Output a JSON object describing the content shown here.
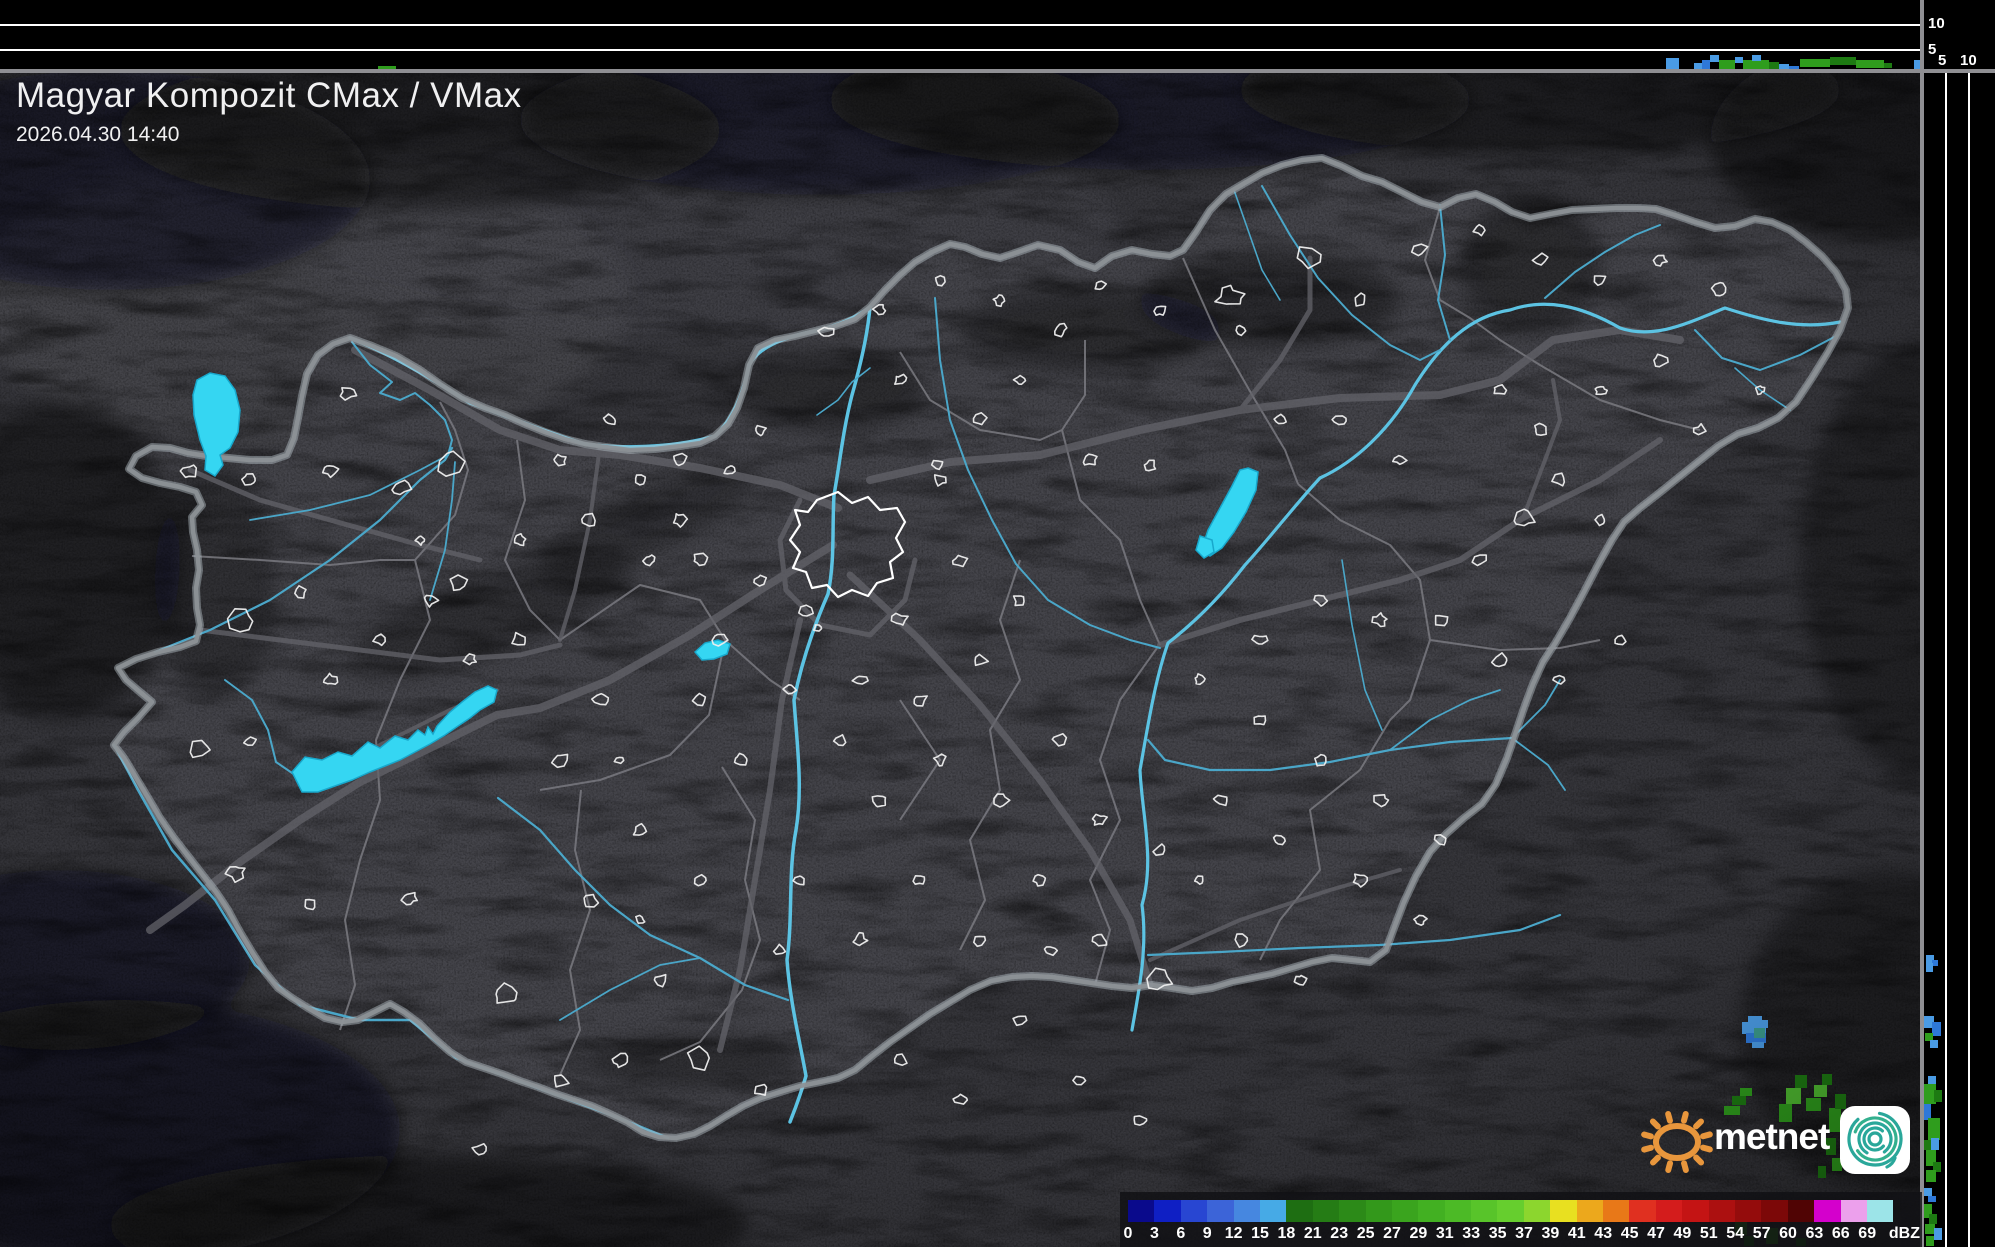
{
  "header": {
    "title": "Magyar Kompozit CMax / VMax",
    "timestamp": "2026.04.30 14:40"
  },
  "legend": {
    "unit": "dBZ",
    "ticks": [
      "0",
      "3",
      "6",
      "9",
      "12",
      "15",
      "18",
      "21",
      "23",
      "25",
      "27",
      "29",
      "31",
      "33",
      "35",
      "37",
      "39",
      "41",
      "43",
      "45",
      "47",
      "49",
      "51",
      "54",
      "57",
      "60",
      "63",
      "66",
      "69"
    ],
    "colors": [
      "#0a0a8c",
      "#0f1fc4",
      "#2846d2",
      "#3c64d8",
      "#4687e0",
      "#46aae6",
      "#1e6e12",
      "#257c15",
      "#2c8a18",
      "#33981b",
      "#3aa41e",
      "#42b022",
      "#4cba26",
      "#58c42a",
      "#66ce2e",
      "#8cd62e",
      "#e8e020",
      "#eca81c",
      "#e87818",
      "#e03020",
      "#d41c1c",
      "#c41414",
      "#ac1010",
      "#940c0c",
      "#7c0808",
      "#500404",
      "#d400cc",
      "#eca0ec",
      "#9ce4e8"
    ]
  },
  "profiles": {
    "palette": {
      "b1": "#4a9be4",
      "b2": "#2e78d8",
      "g1": "#1d7a12",
      "g2": "#2f9d1d",
      "g3": "#4fba31",
      "t1": "#3a9a8c"
    },
    "top": {
      "yticks": [
        "10",
        "5"
      ],
      "cells": [
        [
          378,
          66,
          18,
          4,
          "g2"
        ],
        [
          1666,
          58,
          13,
          11,
          "b1"
        ],
        [
          1694,
          63,
          8,
          7,
          "b1"
        ],
        [
          1702,
          60,
          8,
          10,
          "b2"
        ],
        [
          1710,
          55,
          9,
          7,
          "b1"
        ],
        [
          1719,
          60,
          16,
          9,
          "g2"
        ],
        [
          1735,
          57,
          8,
          6,
          "b1"
        ],
        [
          1743,
          60,
          26,
          9,
          "g2"
        ],
        [
          1752,
          55,
          9,
          6,
          "b1"
        ],
        [
          1769,
          62,
          10,
          7,
          "g1"
        ],
        [
          1779,
          64,
          10,
          6,
          "b1"
        ],
        [
          1789,
          66,
          10,
          4,
          "b2"
        ],
        [
          1800,
          59,
          30,
          8,
          "g2"
        ],
        [
          1830,
          57,
          26,
          8,
          "g1"
        ],
        [
          1856,
          60,
          28,
          8,
          "g2"
        ],
        [
          1884,
          63,
          8,
          5,
          "g1"
        ],
        [
          1914,
          60,
          8,
          9,
          "b1"
        ]
      ]
    },
    "right": {
      "xticks": [
        "5",
        "10"
      ],
      "cells": [
        [
          1926,
          955,
          8,
          8,
          "b1"
        ],
        [
          1932,
          960,
          6,
          6,
          "b2"
        ],
        [
          1926,
          963,
          7,
          9,
          "b1"
        ],
        [
          1924,
          1016,
          10,
          12,
          "b1"
        ],
        [
          1932,
          1022,
          9,
          14,
          "b2"
        ],
        [
          1925,
          1033,
          8,
          8,
          "g2"
        ],
        [
          1930,
          1040,
          8,
          8,
          "b1"
        ],
        [
          1928,
          1076,
          8,
          9,
          "b1"
        ],
        [
          1924,
          1084,
          12,
          20,
          "g2"
        ],
        [
          1934,
          1090,
          8,
          12,
          "g1"
        ],
        [
          1923,
          1104,
          8,
          16,
          "b2"
        ],
        [
          1928,
          1118,
          12,
          22,
          "g2"
        ],
        [
          1924,
          1140,
          8,
          10,
          "g1"
        ],
        [
          1931,
          1138,
          8,
          12,
          "b1"
        ],
        [
          1926,
          1150,
          10,
          16,
          "g2"
        ],
        [
          1933,
          1162,
          8,
          10,
          "g1"
        ],
        [
          1926,
          1170,
          10,
          12,
          "g2"
        ],
        [
          1924,
          1188,
          8,
          8,
          "b1"
        ],
        [
          1928,
          1196,
          8,
          6,
          "b2"
        ],
        [
          1922,
          1204,
          10,
          14,
          "g2"
        ],
        [
          1929,
          1214,
          8,
          10,
          "g1"
        ],
        [
          1925,
          1224,
          10,
          10,
          "g2"
        ],
        [
          1934,
          1228,
          8,
          12,
          "b1"
        ],
        [
          1926,
          1236,
          8,
          10,
          "g2"
        ]
      ]
    },
    "corner": {
      "top_labels": [
        "10",
        "5"
      ],
      "bottom_labels": [
        "5",
        "10"
      ]
    }
  },
  "map": {
    "colors": {
      "water": "#35d6f2",
      "river": "#4aa6c8",
      "big_river": "#5cc3e3",
      "border": "#8d9297",
      "border_halo": "#b6c2c8",
      "county": "#7a7a80",
      "road": "#63636a",
      "settlement": "#efefef",
      "land_in": "#45454b",
      "land_out": "#36363b"
    },
    "echo_cells": [
      [
        1748,
        1016,
        14,
        8,
        "b1"
      ],
      [
        1742,
        1022,
        24,
        12,
        "b1"
      ],
      [
        1746,
        1033,
        20,
        10,
        "b2"
      ],
      [
        1754,
        1028,
        11,
        10,
        "t1"
      ],
      [
        1760,
        1020,
        8,
        8,
        "b1"
      ],
      [
        1752,
        1042,
        12,
        6,
        "b1"
      ],
      [
        1724,
        1106,
        16,
        9,
        "g2"
      ],
      [
        1732,
        1096,
        14,
        9,
        "g1"
      ],
      [
        1740,
        1088,
        12,
        8,
        "g2"
      ],
      [
        1779,
        1104,
        13,
        18,
        "g2"
      ],
      [
        1786,
        1088,
        15,
        16,
        "g3"
      ],
      [
        1795,
        1075,
        12,
        13,
        "g1"
      ],
      [
        1806,
        1098,
        15,
        13,
        "g2"
      ],
      [
        1814,
        1085,
        13,
        12,
        "g3"
      ],
      [
        1822,
        1074,
        10,
        11,
        "g1"
      ],
      [
        1829,
        1108,
        12,
        24,
        "g2"
      ],
      [
        1835,
        1094,
        11,
        15,
        "g1"
      ],
      [
        1826,
        1138,
        10,
        17,
        "g1"
      ],
      [
        1832,
        1158,
        10,
        13,
        "g2"
      ],
      [
        1818,
        1166,
        8,
        12,
        "g1"
      ],
      [
        1735,
        1220,
        12,
        15,
        "g2"
      ],
      [
        1744,
        1236,
        10,
        10,
        "g1"
      ],
      [
        1766,
        1228,
        12,
        16,
        "g2"
      ],
      [
        1796,
        1238,
        10,
        8,
        "g1"
      ]
    ]
  },
  "logo": {
    "text": "metnet"
  }
}
